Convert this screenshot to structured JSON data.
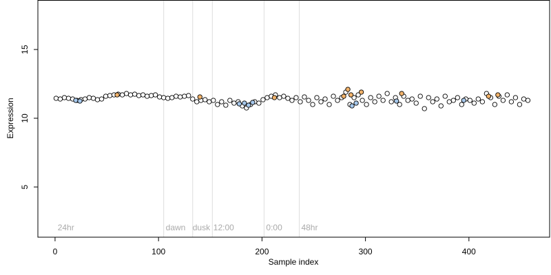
{
  "chart_data": {
    "type": "scatter",
    "xlabel": "Sample index",
    "ylabel": "Expression",
    "xlim": [
      -16.6,
      478
    ],
    "ylim": [
      1.35,
      18.6
    ],
    "xticks": [
      0,
      100,
      200,
      300,
      400
    ],
    "yticks": [
      5,
      10,
      15
    ],
    "vlines": [
      105,
      133,
      152,
      202,
      236
    ],
    "annotations": [
      {
        "text": "24hr",
        "x": 2.5,
        "y": 2
      },
      {
        "text": "dawn",
        "x": 107,
        "y": 2
      },
      {
        "text": "dusk",
        "x": 133,
        "y": 2
      },
      {
        "text": "12:00",
        "x": 153,
        "y": 2
      },
      {
        "text": "0:00",
        "x": 204,
        "y": 2
      },
      {
        "text": "48hr",
        "x": 238,
        "y": 2
      }
    ],
    "series": [
      {
        "color": "#ffffff",
        "x": [
          1,
          5,
          9,
          13,
          17,
          21,
          25,
          29,
          33,
          37,
          41,
          45,
          49,
          53,
          57,
          61,
          65,
          69,
          73,
          77,
          81,
          85,
          89,
          93,
          97,
          101,
          105,
          109,
          113,
          117,
          121,
          125,
          129,
          133,
          137,
          141,
          145,
          149,
          153,
          157,
          161,
          165,
          169,
          173,
          177,
          181,
          185,
          189,
          193,
          197,
          201,
          205,
          209,
          213,
          217,
          221,
          225,
          229,
          233,
          237,
          241,
          245,
          249,
          253,
          257,
          261,
          265,
          269,
          273,
          277,
          281,
          285,
          289,
          293,
          297,
          301,
          305,
          309,
          313,
          317,
          321,
          325,
          329,
          333,
          337,
          341,
          345,
          349,
          353,
          357,
          361,
          365,
          369,
          373,
          377,
          381,
          385,
          389,
          393,
          397,
          401,
          405,
          409,
          413,
          417,
          421,
          425,
          429,
          433,
          437,
          441,
          445,
          449,
          453,
          457
        ],
        "values": [
          11.45,
          11.4,
          11.5,
          11.45,
          11.4,
          11.3,
          11.35,
          11.4,
          11.5,
          11.45,
          11.35,
          11.4,
          11.6,
          11.65,
          11.7,
          11.75,
          11.7,
          11.8,
          11.7,
          11.75,
          11.65,
          11.7,
          11.6,
          11.65,
          11.7,
          11.55,
          11.5,
          11.45,
          11.5,
          11.6,
          11.55,
          11.6,
          11.65,
          11.4,
          11.2,
          11.3,
          11.35,
          11.2,
          11.3,
          11.0,
          11.2,
          10.95,
          11.3,
          11.1,
          11.2,
          10.9,
          10.75,
          11.0,
          11.2,
          11.1,
          11.35,
          11.5,
          11.6,
          11.7,
          11.5,
          11.6,
          11.45,
          11.3,
          11.5,
          11.2,
          11.55,
          11.3,
          11.0,
          11.5,
          11.2,
          11.4,
          11.0,
          11.6,
          11.3,
          11.5,
          11.9,
          11.0,
          11.5,
          11.7,
          11.3,
          11.0,
          11.5,
          11.2,
          11.6,
          11.3,
          11.8,
          11.2,
          11.5,
          11.0,
          11.6,
          11.3,
          11.4,
          11.1,
          11.6,
          10.7,
          11.5,
          11.2,
          11.4,
          10.9,
          11.6,
          11.2,
          11.3,
          11.5,
          11.0,
          11.4,
          11.3,
          11.1,
          11.4,
          11.2,
          11.8,
          11.5,
          11.0,
          11.6,
          11.3,
          11.7,
          11.2,
          11.5,
          11.0,
          11.4,
          11.3
        ]
      },
      {
        "color": "#a6c8ec",
        "x": [
          20,
          24,
          178,
          183,
          187,
          191,
          287,
          291,
          330,
          395
        ],
        "values": [
          11.3,
          11.25,
          11.05,
          11.1,
          10.95,
          11.15,
          10.9,
          11.1,
          11.25,
          11.3
        ]
      },
      {
        "color": "#f2b36b",
        "x": [
          60,
          140,
          212,
          279,
          283,
          286,
          296,
          335,
          419,
          428
        ],
        "values": [
          11.7,
          11.55,
          11.5,
          11.6,
          12.1,
          11.7,
          11.9,
          11.8,
          11.6,
          11.7
        ]
      }
    ]
  }
}
